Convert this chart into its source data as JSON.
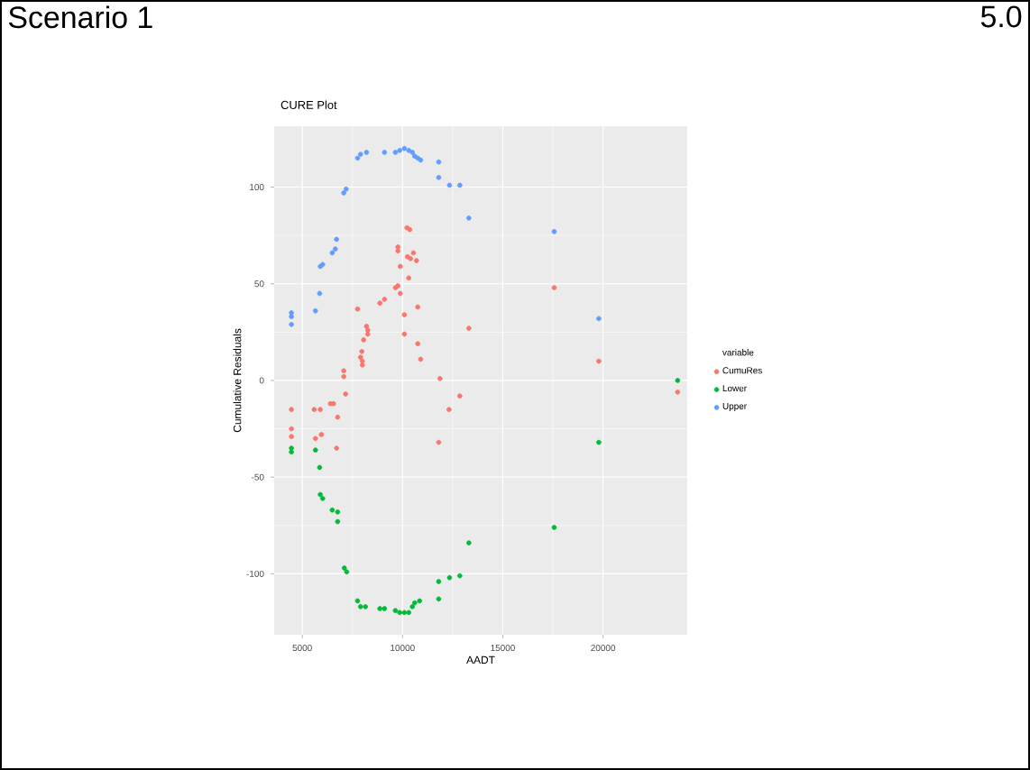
{
  "chart_data": {
    "type": "scatter",
    "title": "CURE Plot",
    "xlabel": "AADT",
    "ylabel": "Cumulative Residuals",
    "legend_title": "variable",
    "annotations": [
      "Scenario 1",
      "5.0"
    ],
    "xlim": [
      3600,
      24200
    ],
    "ylim": [
      -131.5,
      131.5
    ],
    "xticks": [
      5000,
      10000,
      15000,
      20000
    ],
    "yticks": [
      -100,
      -50,
      0,
      50,
      100
    ],
    "grid": true,
    "legend": "right",
    "marker": "circle",
    "series": [
      {
        "name": "CumuRes",
        "color": "#f8766d",
        "x": [
          4460,
          4460,
          4460,
          5594,
          5657,
          5900,
          5954,
          6404,
          6557,
          6710,
          6764,
          7070,
          7070,
          7160,
          7757,
          7907,
          7970,
          7997,
          7997,
          8060,
          8204,
          8267,
          8267,
          8870,
          9104,
          9644,
          9770,
          9887,
          9770,
          9770,
          9887,
          10094,
          10094,
          10220,
          10364,
          10247,
          10400,
          10544,
          10310,
          10697,
          10760,
          10760,
          10904,
          11867,
          11804,
          12317,
          12857,
          13307,
          17564,
          19787,
          23720
        ],
        "values": [
          -15,
          -25,
          -29,
          -15,
          -30,
          -15,
          -28,
          -12,
          -12,
          -35,
          -19,
          5,
          2,
          -7,
          37,
          12,
          15,
          10,
          8,
          21,
          28,
          26,
          24,
          40,
          42,
          48,
          49,
          45,
          69,
          67,
          59,
          34,
          24,
          79,
          78,
          64,
          63,
          66,
          53,
          62,
          38,
          19,
          11,
          1,
          -32,
          -15,
          -8,
          27,
          48,
          10,
          -6
        ]
      },
      {
        "name": "Lower",
        "color": "#00ba38",
        "x": [
          4460,
          4460,
          5657,
          5867,
          5900,
          6017,
          6494,
          6764,
          6764,
          7097,
          7214,
          7757,
          7907,
          8150,
          8870,
          9100,
          9644,
          9860,
          10094,
          10310,
          10490,
          10607,
          10850,
          11804,
          11804,
          12344,
          12857,
          13307,
          17564,
          19787,
          23720
        ],
        "values": [
          -35,
          -37,
          -36,
          -45,
          -59,
          -61,
          -67,
          -68,
          -73,
          -97,
          -99,
          -114,
          -117,
          -117,
          -118,
          -118,
          -119,
          -120,
          -120,
          -120,
          -117,
          -115,
          -114,
          -113,
          -104,
          -102,
          -101,
          -84,
          -76,
          -32,
          0
        ]
      },
      {
        "name": "Upper",
        "color": "#619cff",
        "x": [
          4460,
          4460,
          4460,
          5657,
          5867,
          5900,
          6017,
          6494,
          6647,
          6710,
          7070,
          7187,
          7757,
          7907,
          8204,
          8960,
          9100,
          9644,
          9860,
          10094,
          10310,
          10490,
          10607,
          10760,
          10904,
          11804,
          11804,
          12344,
          12857,
          13307,
          17564,
          19787
        ],
        "values": [
          35,
          33,
          29,
          36,
          45,
          59,
          60,
          66,
          68,
          73,
          97,
          99,
          115,
          117,
          118,
          null,
          118,
          118,
          119,
          120,
          119,
          118,
          116,
          115,
          114,
          113,
          105,
          101,
          101,
          84,
          77,
          32
        ]
      }
    ]
  }
}
